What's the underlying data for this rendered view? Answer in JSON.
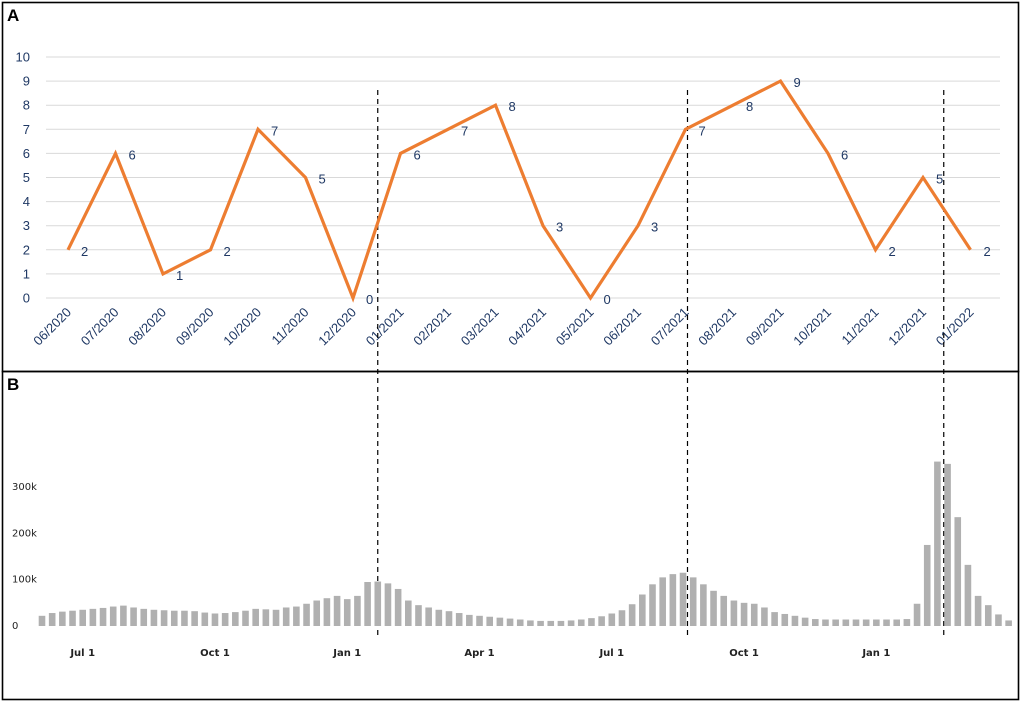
{
  "panels": {
    "a_label": "A",
    "b_label": "B"
  },
  "colors": {
    "line": "#ed7d31",
    "bar": "#b0b0b0",
    "grid": "#d9d9d9",
    "text_a": "#1f3864",
    "frame": "#000000"
  },
  "chart_data": [
    {
      "panel": "A",
      "type": "line",
      "categories": [
        "06/2020",
        "07/2020",
        "08/2020",
        "09/2020",
        "10/2020",
        "11/2020",
        "12/2020",
        "01/2021",
        "02/2021",
        "03/2021",
        "04/2021",
        "05/2021",
        "06/2021",
        "07/2021",
        "08/2021",
        "09/2021",
        "10/2021",
        "11/2021",
        "12/2021",
        "01/2022"
      ],
      "values": [
        2,
        6,
        1,
        2,
        7,
        5,
        0,
        6,
        7,
        8,
        3,
        0,
        3,
        7,
        8,
        9,
        6,
        2,
        5,
        2
      ],
      "data_labels": true,
      "ylim": [
        0,
        10
      ],
      "yticks": [
        0,
        1,
        2,
        3,
        4,
        5,
        6,
        7,
        8,
        9,
        10
      ],
      "grid": true,
      "markers": [
        {
          "position": "between 12/2020 and 01/2021",
          "style": "dashed-vertical"
        },
        {
          "position": "at 07/2021",
          "style": "dashed-vertical"
        },
        {
          "position": "between 12/2021 and 01/2022",
          "style": "dashed-vertical"
        }
      ]
    },
    {
      "panel": "B",
      "type": "bar",
      "series_unit": "weekly counts",
      "yticks": [
        "0",
        "100k",
        "200k",
        "300k"
      ],
      "ytick_values": [
        0,
        100000,
        200000,
        300000
      ],
      "ylim": [
        0,
        380000
      ],
      "xticks": [
        {
          "label": "Jul 1",
          "week_index": 4
        },
        {
          "label": "Oct 1",
          "week_index": 17
        },
        {
          "label": "Jan 1",
          "week_index": 30
        },
        {
          "label": "Apr 1",
          "week_index": 43
        },
        {
          "label": "Jul 1",
          "week_index": 56
        },
        {
          "label": "Oct 1",
          "week_index": 69
        },
        {
          "label": "Jan 1",
          "week_index": 82
        }
      ],
      "values": [
        22000,
        28000,
        31000,
        33000,
        35000,
        37000,
        39000,
        42000,
        44000,
        40000,
        37000,
        35000,
        34000,
        33000,
        33000,
        32000,
        29000,
        27000,
        28000,
        30000,
        33000,
        37000,
        36000,
        35000,
        40000,
        42000,
        48000,
        55000,
        60000,
        65000,
        58000,
        65000,
        95000,
        96000,
        92000,
        80000,
        55000,
        45000,
        40000,
        35000,
        32000,
        28000,
        24000,
        22000,
        20000,
        18000,
        16000,
        14000,
        12000,
        11000,
        11000,
        11000,
        12000,
        14000,
        17000,
        21000,
        27000,
        34000,
        47000,
        68000,
        90000,
        105000,
        112000,
        115000,
        105000,
        90000,
        76000,
        65000,
        55000,
        50000,
        48000,
        40000,
        30000,
        26000,
        22000,
        18000,
        15000,
        14000,
        14000,
        14000,
        14000,
        14000,
        14000,
        14000,
        14000,
        15000,
        48000,
        175000,
        355000,
        350000,
        235000,
        132000,
        65000,
        45000,
        25000,
        12000
      ],
      "markers": [
        {
          "position": "Jan 1 (first)",
          "style": "dashed-vertical"
        },
        {
          "position": "early Aug",
          "style": "dashed-vertical"
        },
        {
          "position": "Jan 1 (second)",
          "style": "dashed-vertical"
        }
      ]
    }
  ]
}
